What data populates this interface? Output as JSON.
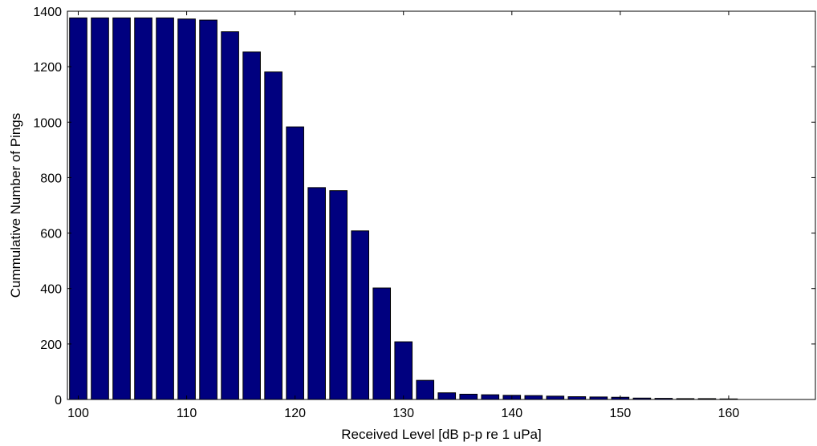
{
  "chart_data": {
    "type": "bar",
    "title": "",
    "xlabel": "Received Level [dB p-p re 1 uPa]",
    "ylabel": "Cummulative Number of Pings",
    "xlim": [
      99,
      168
    ],
    "ylim": [
      0,
      1400
    ],
    "xticks": [
      100,
      110,
      120,
      130,
      140,
      150,
      160
    ],
    "yticks": [
      0,
      200,
      400,
      600,
      800,
      1000,
      1200,
      1400
    ],
    "bar_width": 1.6,
    "bar_color": "#00007f",
    "edge_color": "#000000",
    "grid": false,
    "legend": "none",
    "x": [
      100,
      102,
      104,
      106,
      108,
      110,
      112,
      114,
      116,
      118,
      120,
      122,
      124,
      126,
      128,
      130,
      132,
      134,
      136,
      138,
      140,
      142,
      144,
      146,
      148,
      150,
      152,
      154,
      156,
      158,
      160
    ],
    "values": [
      1376,
      1376,
      1376,
      1376,
      1376,
      1372,
      1368,
      1326,
      1253,
      1181,
      983,
      764,
      753,
      608,
      402,
      208,
      69,
      24,
      19,
      17,
      15,
      14,
      12,
      10,
      9,
      8,
      5,
      4,
      3,
      3,
      2
    ]
  }
}
